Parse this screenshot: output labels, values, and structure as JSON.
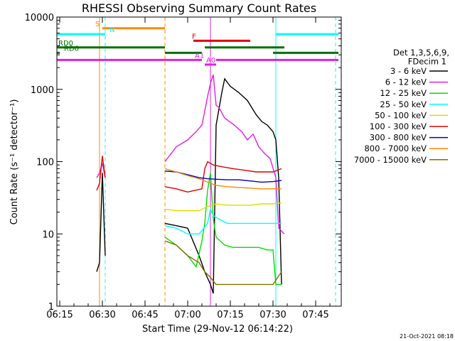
{
  "chart_data": {
    "type": "line",
    "title": "RHESSI Observing Summary Count Rates",
    "xlabel": "Start Time (29-Nov-12 06:14:22)",
    "ylabel": "Count Rate (s⁻¹ detector⁻¹)",
    "x_scale": "time",
    "x_range": [
      "06:14",
      "07:54"
    ],
    "x_ticks": [
      "06:15",
      "06:30",
      "06:45",
      "07:00",
      "07:15",
      "07:30",
      "07:45"
    ],
    "y_scale": "log",
    "ylim": [
      1,
      10000
    ],
    "y_ticks": [
      "1",
      "10",
      "100",
      "1000",
      "10000"
    ],
    "legend_title": [
      "Det 1,3,5,6,9,",
      "FDecim 1"
    ],
    "legend_position": "right",
    "series": [
      {
        "name": "3 - 6 keV",
        "color": "#000000",
        "points": [
          [
            "06:28",
            3
          ],
          [
            "06:29",
            4
          ],
          [
            "06:30",
            70
          ],
          [
            "06:31",
            5
          ],
          [
            "06:52",
            14
          ],
          [
            "06:56",
            13
          ],
          [
            "07:00",
            12
          ],
          [
            "07:04",
            5
          ],
          [
            "07:06",
            3
          ],
          [
            "07:08",
            2
          ],
          [
            "07:09",
            1.5
          ],
          [
            "07:10",
            320
          ],
          [
            "07:12",
            900
          ],
          [
            "07:13",
            1400
          ],
          [
            "07:15",
            1100
          ],
          [
            "07:18",
            900
          ],
          [
            "07:21",
            700
          ],
          [
            "07:24",
            450
          ],
          [
            "07:26",
            360
          ],
          [
            "07:28",
            320
          ],
          [
            "07:30",
            260
          ],
          [
            "07:31",
            200
          ],
          [
            "07:32",
            60
          ],
          [
            "07:33",
            2
          ]
        ]
      },
      {
        "name": "6 - 12 keV",
        "color": "#e020e0",
        "points": [
          [
            "06:28",
            60
          ],
          [
            "06:29",
            70
          ],
          [
            "06:30",
            95
          ],
          [
            "06:31",
            60
          ],
          [
            "06:52",
            100
          ],
          [
            "06:56",
            160
          ],
          [
            "07:00",
            200
          ],
          [
            "07:03",
            260
          ],
          [
            "07:05",
            320
          ],
          [
            "07:06",
            500
          ],
          [
            "07:07",
            800
          ],
          [
            "07:08",
            1200
          ],
          [
            "07:09",
            1600
          ],
          [
            "07:10",
            600
          ],
          [
            "07:11",
            560
          ],
          [
            "07:13",
            400
          ],
          [
            "07:16",
            330
          ],
          [
            "07:19",
            260
          ],
          [
            "07:21",
            200
          ],
          [
            "07:23",
            240
          ],
          [
            "07:25",
            160
          ],
          [
            "07:27",
            130
          ],
          [
            "07:29",
            110
          ],
          [
            "07:31",
            60
          ],
          [
            "07:32",
            12
          ],
          [
            "07:34",
            10
          ]
        ]
      },
      {
        "name": "12 - 25 keV",
        "color": "#00e000",
        "points": [
          [
            "06:52",
            9
          ],
          [
            "06:56",
            7
          ],
          [
            "07:00",
            5
          ],
          [
            "07:03",
            3.5
          ],
          [
            "07:05",
            8
          ],
          [
            "07:06",
            14
          ],
          [
            "07:07",
            40
          ],
          [
            "07:08",
            70
          ],
          [
            "07:09",
            16
          ],
          [
            "07:10",
            9
          ],
          [
            "07:13",
            7
          ],
          [
            "07:16",
            6.5
          ],
          [
            "07:19",
            6.5
          ],
          [
            "07:22",
            6.5
          ],
          [
            "07:25",
            6.5
          ],
          [
            "07:28",
            6
          ],
          [
            "07:30",
            6
          ],
          [
            "07:31",
            2
          ],
          [
            "07:33",
            2
          ]
        ]
      },
      {
        "name": "25 - 50 keV",
        "color": "#00ffff",
        "points": [
          [
            "06:52",
            13
          ],
          [
            "06:56",
            12
          ],
          [
            "07:00",
            10
          ],
          [
            "07:04",
            10
          ],
          [
            "07:07",
            14
          ],
          [
            "07:08",
            22
          ],
          [
            "07:09",
            18
          ],
          [
            "07:11",
            16
          ],
          [
            "07:14",
            14
          ],
          [
            "07:18",
            14
          ],
          [
            "07:22",
            14
          ],
          [
            "07:26",
            14
          ],
          [
            "07:30",
            14
          ],
          [
            "07:33",
            14
          ]
        ]
      },
      {
        "name": "50 - 100 keV",
        "color": "#e8d800",
        "points": [
          [
            "06:52",
            22
          ],
          [
            "06:56",
            21
          ],
          [
            "07:00",
            21
          ],
          [
            "07:04",
            21
          ],
          [
            "07:07",
            24
          ],
          [
            "07:10",
            26
          ],
          [
            "07:14",
            25
          ],
          [
            "07:18",
            25
          ],
          [
            "07:22",
            25
          ],
          [
            "07:26",
            26
          ],
          [
            "07:30",
            26
          ],
          [
            "07:33",
            27
          ]
        ]
      },
      {
        "name": "100 - 300 keV",
        "color": "#e00000",
        "points": [
          [
            "06:28",
            40
          ],
          [
            "06:29",
            50
          ],
          [
            "06:30",
            120
          ],
          [
            "06:31",
            60
          ],
          [
            "06:52",
            45
          ],
          [
            "06:56",
            42
          ],
          [
            "07:00",
            38
          ],
          [
            "07:05",
            42
          ],
          [
            "07:06",
            80
          ],
          [
            "07:07",
            100
          ],
          [
            "07:09",
            90
          ],
          [
            "07:12",
            85
          ],
          [
            "07:16",
            80
          ],
          [
            "07:20",
            76
          ],
          [
            "07:24",
            72
          ],
          [
            "07:28",
            72
          ],
          [
            "07:30",
            72
          ],
          [
            "07:33",
            80
          ]
        ]
      },
      {
        "name": "300 - 800 keV",
        "color": "#0000c0",
        "points": [
          [
            "06:52",
            74
          ],
          [
            "06:56",
            72
          ],
          [
            "07:00",
            66
          ],
          [
            "07:04",
            60
          ],
          [
            "07:07",
            58
          ],
          [
            "07:10",
            57
          ],
          [
            "07:14",
            56
          ],
          [
            "07:18",
            56
          ],
          [
            "07:22",
            54
          ],
          [
            "07:26",
            52
          ],
          [
            "07:30",
            53
          ],
          [
            "07:33",
            55
          ]
        ]
      },
      {
        "name": "800 - 7000 keV",
        "color": "#ff8800",
        "points": [
          [
            "06:52",
            80
          ],
          [
            "06:56",
            72
          ],
          [
            "07:00",
            64
          ],
          [
            "07:04",
            58
          ],
          [
            "07:07",
            52
          ],
          [
            "07:10",
            47
          ],
          [
            "07:14",
            45
          ],
          [
            "07:18",
            44
          ],
          [
            "07:22",
            43
          ],
          [
            "07:26",
            42
          ],
          [
            "07:30",
            42
          ],
          [
            "07:33",
            42
          ]
        ]
      },
      {
        "name": "7000 - 15000 keV",
        "color": "#807000",
        "points": [
          [
            "06:52",
            8
          ],
          [
            "06:56",
            7
          ],
          [
            "07:00",
            5
          ],
          [
            "07:04",
            4
          ],
          [
            "07:06",
            3
          ],
          [
            "07:08",
            2.5
          ],
          [
            "07:10",
            2
          ],
          [
            "07:14",
            2
          ],
          [
            "07:18",
            2
          ],
          [
            "07:22",
            2
          ],
          [
            "07:26",
            2
          ],
          [
            "07:30",
            2
          ],
          [
            "07:33",
            3
          ]
        ]
      }
    ],
    "flags": [
      {
        "label": "S",
        "color": "#ff8800",
        "level": 7000,
        "segments": [
          [
            "06:30",
            "06:52"
          ]
        ]
      },
      {
        "label": "N",
        "color": "#00ffff",
        "level": 5800,
        "segments": [
          [
            "06:14",
            "06:31"
          ],
          [
            "07:31",
            "07:53"
          ]
        ]
      },
      {
        "label": "F",
        "color": "#e00000",
        "level": 4700,
        "segments": [
          [
            "07:02",
            "07:22"
          ]
        ]
      },
      {
        "label": "RD0",
        "color": "#007000",
        "level": 3800,
        "segments": [
          [
            "06:14",
            "06:52"
          ],
          [
            "07:06",
            "07:34"
          ]
        ]
      },
      {
        "label": "RD6",
        "color": "#007000",
        "level": 3200,
        "segments": [
          [
            "06:14",
            "06:15"
          ],
          [
            "06:52",
            "07:05"
          ],
          [
            "07:30",
            "07:53"
          ]
        ]
      },
      {
        "label": "A1",
        "color": "#e020e0",
        "level": 2550,
        "segments": [
          [
            "06:14",
            "07:05"
          ],
          [
            "07:10",
            "07:53"
          ]
        ]
      },
      {
        "label": "A0",
        "color": "#e020e0",
        "level": 2200,
        "segments": [
          [
            "07:06",
            "07:10"
          ]
        ]
      }
    ],
    "vlines": [
      {
        "x": "06:29",
        "color": "#ff8800",
        "style": "solid"
      },
      {
        "x": "06:31",
        "color": "#00ffff",
        "style": "dashed"
      },
      {
        "x": "06:52",
        "color": "#ff8800",
        "style": "dashed"
      },
      {
        "x": "07:08",
        "color": "#e020e0",
        "style": "solid"
      },
      {
        "x": "07:31",
        "color": "#00ffff",
        "style": "solid"
      },
      {
        "x": "07:52",
        "color": "#00ffff",
        "style": "dashed"
      },
      {
        "x": "06:14",
        "color": "#00ffff",
        "style": "solid"
      }
    ],
    "grid": false
  },
  "timestamp": "21-Oct-2021 08:18"
}
